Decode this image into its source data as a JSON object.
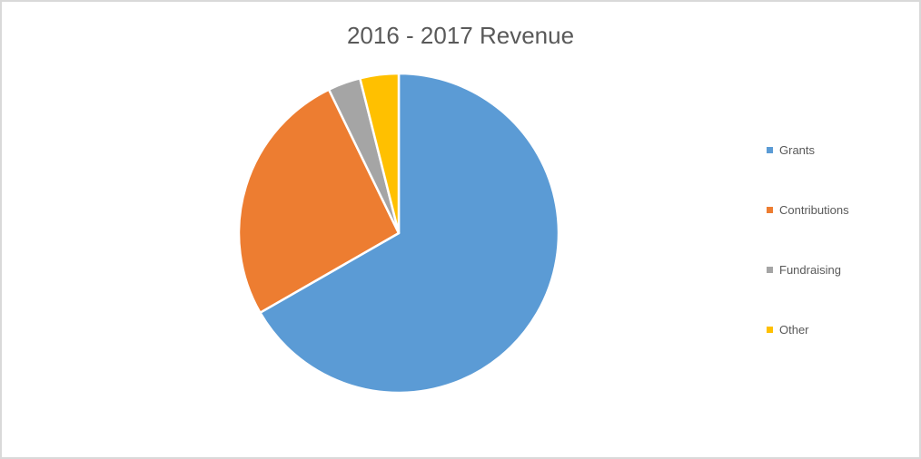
{
  "chart": {
    "background": "#FFFFFF",
    "frame_border_color": "#D9D9D9",
    "title_color": "#595959",
    "legend_text_color": "#595959"
  },
  "chart_data": {
    "type": "pie",
    "title": "2016 - 2017 Revenue",
    "categories": [
      "Grants",
      "Contributions",
      "Fundraising",
      "Other"
    ],
    "values": [
      66.7,
      26.1,
      3.3,
      3.9
    ],
    "values_note": "percent of total, estimated from slice angles; no numeric data labels are visible in the chart",
    "colors": [
      "#5B9BD5",
      "#ED7D31",
      "#A5A5A5",
      "#FFC000"
    ],
    "slice_border_color": "#FFFFFF",
    "start_angle_deg": 0,
    "direction": "clockwise",
    "legend_position": "right",
    "legend_marker": "square"
  }
}
